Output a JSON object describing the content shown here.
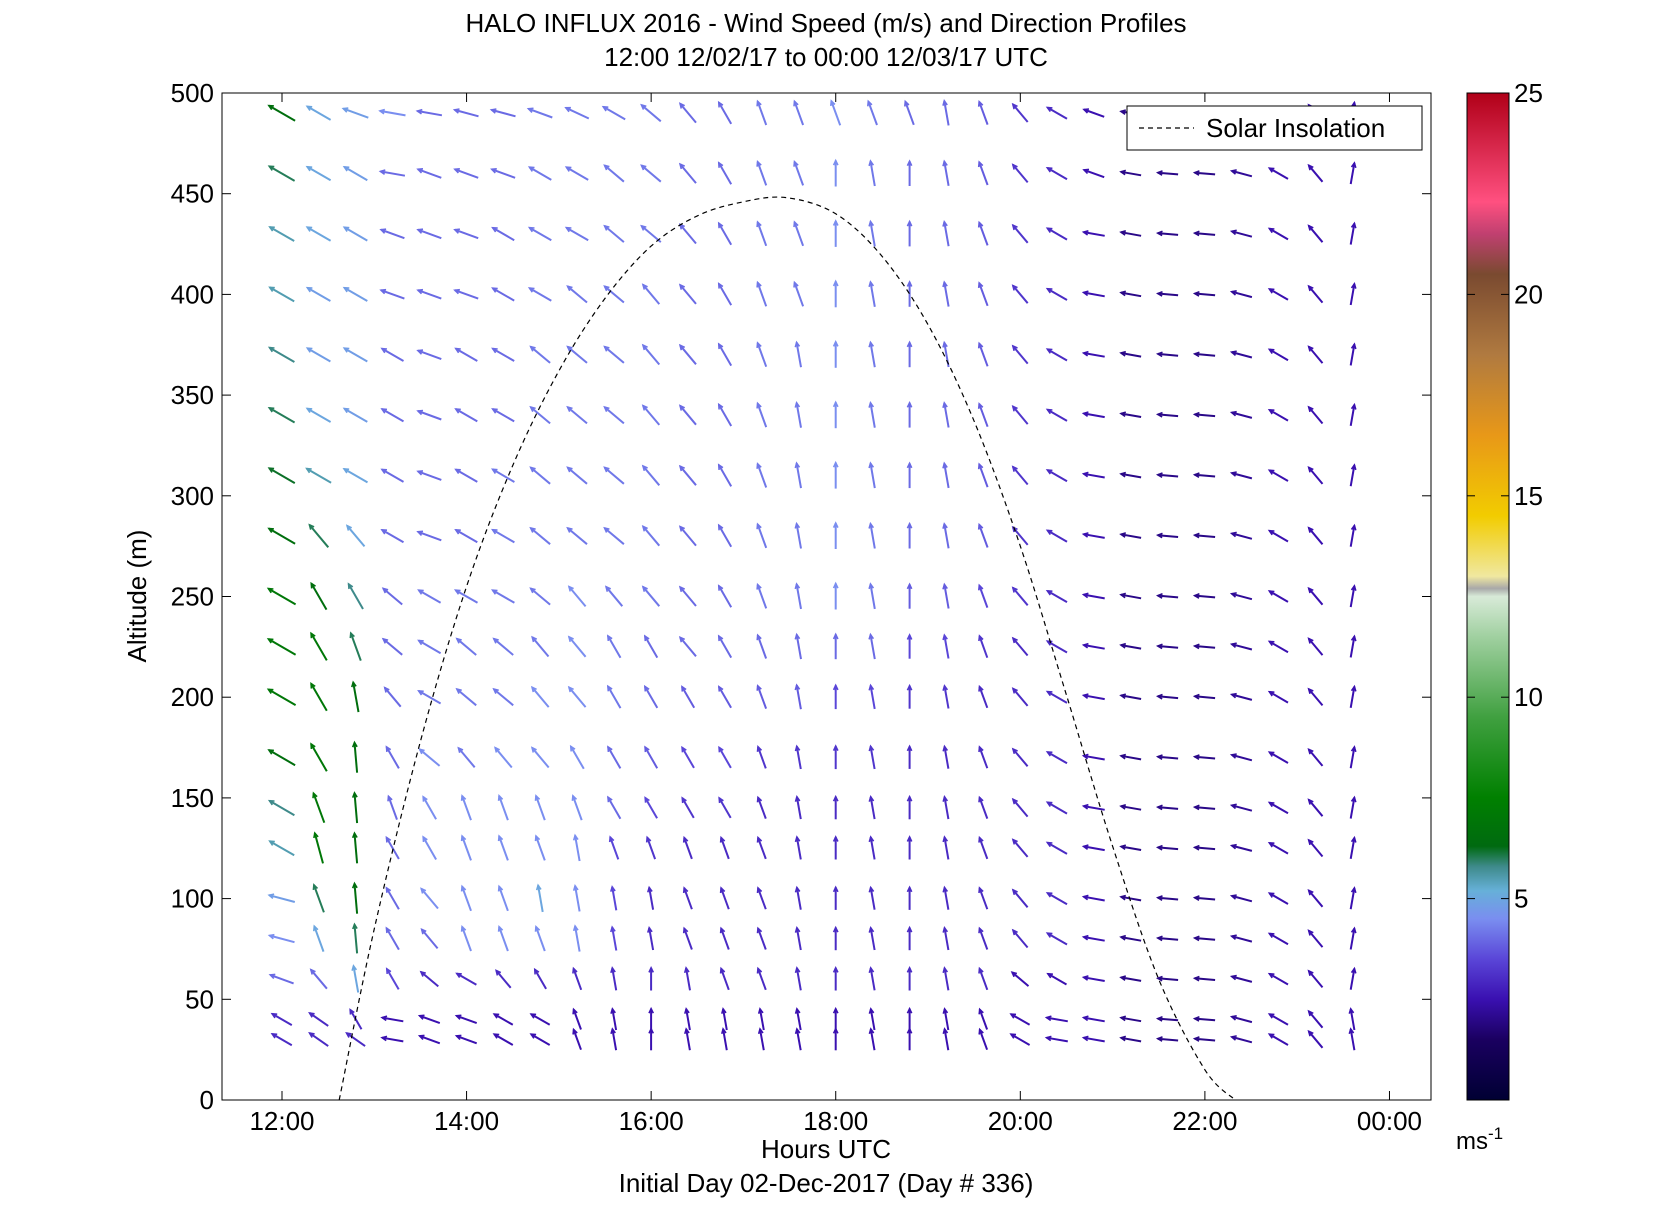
{
  "chart_data": {
    "type": "wind_profile_quiver",
    "title": "HALO INFLUX 2016 - Wind Speed (m/s) and Direction Profiles",
    "subtitle": "12:00 12/02/17 to 00:00 12/03/17  UTC",
    "xlabel": "Hours UTC",
    "footer": "Initial Day 02-Dec-2017 (Day # 336)",
    "ylabel": "Altitude (m)",
    "x_ticks": [
      "12:00",
      "14:00",
      "16:00",
      "18:00",
      "20:00",
      "22:00",
      "00:00"
    ],
    "x_tick_hours": [
      12,
      14,
      16,
      18,
      20,
      22,
      24
    ],
    "xlim_hours": [
      11.35,
      24.45
    ],
    "y_ticks": [
      0,
      50,
      100,
      150,
      200,
      250,
      300,
      350,
      400,
      450,
      500
    ],
    "ylim": [
      0,
      500
    ],
    "legend": {
      "label": "Solar Insolation",
      "position": "top-right"
    },
    "colorbar": {
      "ticks": [
        5,
        10,
        15,
        20,
        25
      ],
      "range": [
        0,
        25
      ],
      "unit_label": "ms-1",
      "stops": [
        {
          "v": 0,
          "c": "#000033"
        },
        {
          "v": 1.5,
          "c": "#1a0060"
        },
        {
          "v": 2.5,
          "c": "#3a10b0"
        },
        {
          "v": 3.5,
          "c": "#5a46d8"
        },
        {
          "v": 4.5,
          "c": "#7a8ef0"
        },
        {
          "v": 5.2,
          "c": "#66b0d8"
        },
        {
          "v": 5.8,
          "c": "#3e8a8a"
        },
        {
          "v": 6.3,
          "c": "#006a10"
        },
        {
          "v": 7.5,
          "c": "#008000"
        },
        {
          "v": 9.5,
          "c": "#40a040"
        },
        {
          "v": 11.5,
          "c": "#a0d0a0"
        },
        {
          "v": 12.5,
          "c": "#d8ead8"
        },
        {
          "v": 12.7,
          "c": "#a8a8a8"
        },
        {
          "v": 13.0,
          "c": "#f0e8a0"
        },
        {
          "v": 14.5,
          "c": "#f2cc00"
        },
        {
          "v": 16.5,
          "c": "#e89818"
        },
        {
          "v": 18.5,
          "c": "#b07a40"
        },
        {
          "v": 20.5,
          "c": "#7a4a30"
        },
        {
          "v": 21.5,
          "c": "#c04070"
        },
        {
          "v": 22.3,
          "c": "#ff5080"
        },
        {
          "v": 25,
          "c": "#b00018"
        }
      ]
    },
    "altitudes_m": [
      30,
      40,
      60,
      80,
      100,
      125,
      145,
      170,
      200,
      225,
      250,
      280,
      310,
      340,
      370,
      400,
      430,
      460,
      490
    ],
    "times_hours": [
      12.0,
      12.4,
      12.8,
      13.2,
      13.6,
      14.0,
      14.4,
      14.8,
      15.2,
      15.6,
      16.0,
      16.4,
      16.8,
      17.2,
      17.6,
      18.0,
      18.4,
      18.8,
      19.2,
      19.6,
      20.0,
      20.4,
      20.8,
      21.2,
      21.6,
      22.0,
      22.4,
      22.8,
      23.2,
      23.6
    ],
    "wind_note": "direction in degrees from north the flow points toward; speed in m/s",
    "wind_direction_deg": [
      [
        300,
        300,
        290,
        285,
        285,
        300,
        300,
        300,
        300,
        300,
        300,
        300,
        300,
        300,
        300,
        300,
        300,
        300,
        300
      ],
      [
        305,
        305,
        320,
        340,
        340,
        345,
        340,
        330,
        330,
        330,
        330,
        320,
        300,
        300,
        300,
        300,
        300,
        300,
        300
      ],
      [
        305,
        330,
        350,
        355,
        355,
        355,
        355,
        355,
        350,
        340,
        330,
        320,
        300,
        300,
        300,
        300,
        300,
        300,
        290
      ],
      [
        280,
        280,
        330,
        330,
        330,
        330,
        340,
        330,
        320,
        310,
        310,
        300,
        300,
        300,
        300,
        290,
        290,
        280,
        280
      ],
      [
        290,
        290,
        310,
        320,
        320,
        330,
        330,
        310,
        300,
        300,
        300,
        290,
        290,
        290,
        290,
        290,
        290,
        290,
        280
      ],
      [
        290,
        290,
        300,
        340,
        340,
        340,
        340,
        320,
        310,
        310,
        300,
        300,
        300,
        300,
        300,
        290,
        290,
        290,
        285
      ],
      [
        300,
        300,
        320,
        340,
        340,
        340,
        340,
        320,
        310,
        310,
        300,
        300,
        300,
        300,
        300,
        300,
        300,
        290,
        285
      ],
      [
        300,
        300,
        330,
        340,
        350,
        340,
        340,
        320,
        320,
        320,
        310,
        310,
        310,
        310,
        310,
        300,
        300,
        300,
        290
      ],
      [
        340,
        340,
        340,
        350,
        350,
        350,
        340,
        330,
        320,
        320,
        320,
        310,
        310,
        310,
        310,
        310,
        300,
        300,
        295
      ],
      [
        350,
        350,
        350,
        350,
        350,
        340,
        330,
        330,
        330,
        330,
        320,
        310,
        310,
        310,
        310,
        310,
        310,
        310,
        300
      ],
      [
        0,
        0,
        0,
        350,
        350,
        340,
        330,
        330,
        330,
        330,
        320,
        320,
        320,
        320,
        320,
        320,
        310,
        310,
        310
      ],
      [
        350,
        350,
        350,
        340,
        340,
        340,
        330,
        330,
        330,
        320,
        320,
        320,
        320,
        320,
        320,
        320,
        320,
        320,
        320
      ],
      [
        350,
        350,
        340,
        340,
        340,
        340,
        330,
        330,
        330,
        330,
        330,
        330,
        330,
        330,
        330,
        330,
        330,
        330,
        330
      ],
      [
        350,
        350,
        340,
        340,
        340,
        340,
        340,
        340,
        340,
        340,
        340,
        340,
        340,
        340,
        340,
        340,
        340,
        340,
        340
      ],
      [
        350,
        350,
        350,
        350,
        350,
        350,
        350,
        350,
        350,
        350,
        350,
        350,
        350,
        350,
        350,
        340,
        340,
        340,
        340
      ],
      [
        0,
        0,
        0,
        0,
        0,
        0,
        0,
        0,
        0,
        0,
        0,
        0,
        0,
        0,
        0,
        0,
        0,
        0,
        340
      ],
      [
        350,
        350,
        350,
        350,
        350,
        350,
        350,
        350,
        350,
        350,
        350,
        350,
        350,
        350,
        350,
        350,
        350,
        350,
        340
      ],
      [
        0,
        0,
        0,
        0,
        0,
        0,
        0,
        0,
        0,
        0,
        0,
        0,
        0,
        0,
        0,
        0,
        0,
        0,
        340
      ],
      [
        350,
        350,
        350,
        350,
        350,
        350,
        350,
        350,
        350,
        350,
        350,
        350,
        350,
        350,
        350,
        350,
        350,
        350,
        350
      ],
      [
        340,
        340,
        340,
        340,
        340,
        340,
        340,
        340,
        340,
        340,
        340,
        340,
        340,
        340,
        340,
        340,
        340,
        340,
        340
      ],
      [
        300,
        300,
        310,
        320,
        320,
        320,
        320,
        320,
        320,
        320,
        320,
        320,
        320,
        320,
        320,
        320,
        320,
        320,
        320
      ],
      [
        280,
        280,
        300,
        300,
        300,
        300,
        300,
        300,
        300,
        300,
        300,
        300,
        300,
        300,
        300,
        300,
        300,
        300,
        300
      ],
      [
        280,
        280,
        280,
        280,
        280,
        280,
        280,
        280,
        280,
        280,
        280,
        280,
        280,
        280,
        280,
        280,
        280,
        290,
        290
      ],
      [
        280,
        280,
        280,
        280,
        280,
        280,
        280,
        280,
        280,
        280,
        280,
        280,
        280,
        280,
        280,
        280,
        280,
        280,
        280
      ],
      [
        275,
        275,
        275,
        275,
        275,
        275,
        275,
        275,
        275,
        275,
        275,
        275,
        275,
        275,
        275,
        275,
        275,
        275,
        275
      ],
      [
        275,
        275,
        275,
        275,
        275,
        275,
        275,
        275,
        275,
        275,
        275,
        275,
        275,
        275,
        275,
        275,
        275,
        275,
        275
      ],
      [
        285,
        285,
        285,
        285,
        285,
        285,
        285,
        285,
        285,
        285,
        285,
        285,
        285,
        285,
        285,
        285,
        285,
        285,
        285
      ],
      [
        300,
        300,
        300,
        300,
        300,
        300,
        300,
        300,
        300,
        300,
        300,
        300,
        300,
        300,
        300,
        300,
        300,
        300,
        300
      ],
      [
        320,
        320,
        320,
        320,
        320,
        320,
        320,
        320,
        320,
        320,
        320,
        320,
        320,
        320,
        320,
        320,
        320,
        320,
        320
      ],
      [
        350,
        350,
        10,
        10,
        10,
        10,
        10,
        10,
        10,
        10,
        10,
        10,
        10,
        10,
        10,
        10,
        10,
        10,
        10
      ]
    ],
    "wind_speed_ms": [
      [
        3,
        3,
        4,
        4.5,
        4.8,
        5.5,
        5.8,
        6.5,
        7,
        7,
        7,
        6.5,
        6.2,
        6,
        5.8,
        5.5,
        5.5,
        6,
        6.5
      ],
      [
        3,
        3,
        4,
        5,
        6,
        7,
        7,
        7,
        7,
        7,
        6.5,
        6,
        5.5,
        5,
        4.8,
        4.8,
        5,
        5,
        5
      ],
      [
        3,
        3,
        5,
        6,
        6.5,
        6.5,
        6.5,
        6.5,
        6.5,
        6,
        5.8,
        5,
        5,
        4.8,
        4.8,
        4.8,
        4.8,
        4.8,
        4.8
      ],
      [
        2.5,
        2.5,
        3.5,
        4,
        4,
        4,
        4,
        4,
        4,
        4,
        4,
        4,
        4,
        4,
        4,
        4,
        4,
        4,
        4.5
      ],
      [
        2.5,
        2.5,
        3,
        4,
        4.5,
        4.5,
        4.5,
        4.5,
        4.2,
        4.2,
        4.2,
        4,
        4,
        4,
        4,
        4,
        4,
        4,
        4
      ],
      [
        2.5,
        2.5,
        3,
        4.5,
        4.5,
        4.5,
        4.5,
        4.2,
        4.2,
        4.2,
        4.2,
        4,
        4,
        4,
        4,
        4,
        4,
        4,
        4
      ],
      [
        2.5,
        2.5,
        3,
        4.5,
        4.5,
        4.5,
        4.5,
        4.5,
        4.2,
        4.2,
        4.2,
        4.2,
        4.2,
        4,
        4,
        4,
        4,
        4,
        4
      ],
      [
        2.5,
        2.5,
        3,
        4.5,
        5,
        4.5,
        4.5,
        4.5,
        4.5,
        4.2,
        4.2,
        4.2,
        4.2,
        4.2,
        4.2,
        4.2,
        4.2,
        4.2,
        4.2
      ],
      [
        2.5,
        2.5,
        3,
        4.5,
        4.5,
        4.5,
        4.5,
        4.5,
        4.5,
        4.5,
        4.5,
        4.2,
        4.2,
        4.2,
        4.2,
        4.2,
        4.2,
        4.2,
        4.2
      ],
      [
        2.5,
        2.5,
        3,
        3.5,
        3.5,
        3.5,
        4,
        4,
        4.2,
        4.2,
        4.2,
        4.2,
        4.2,
        4.2,
        4.2,
        4.2,
        4.2,
        4.2,
        4.2
      ],
      [
        2.5,
        2.5,
        3,
        3,
        3,
        3.2,
        3.5,
        3.8,
        4,
        4,
        4.2,
        4.2,
        4.2,
        4.2,
        4.2,
        4.2,
        4.2,
        4.2,
        4.2
      ],
      [
        2.5,
        2.5,
        3,
        3,
        3,
        3,
        3.2,
        3.5,
        3.8,
        4,
        4,
        4,
        4,
        4,
        4,
        4,
        4,
        4,
        4
      ],
      [
        2.5,
        2.5,
        3,
        3,
        3,
        3,
        3.2,
        3.5,
        3.8,
        4,
        4,
        4,
        4,
        4,
        4,
        4,
        4,
        4,
        4
      ],
      [
        2.5,
        2.5,
        3,
        3,
        3,
        3,
        3,
        3.2,
        3.8,
        4,
        4.2,
        4.2,
        4.2,
        4.2,
        4.2,
        4.2,
        4.2,
        4.2,
        4.2
      ],
      [
        2.5,
        2.5,
        3,
        3,
        3,
        3,
        3,
        3.2,
        3.8,
        4,
        4.2,
        4.2,
        4.2,
        4.2,
        4.2,
        4.2,
        4.2,
        4.2,
        4.2
      ],
      [
        2.5,
        2.5,
        3,
        3,
        3,
        3,
        3,
        3.2,
        3.5,
        4,
        4.5,
        4.5,
        4.5,
        4.5,
        4.5,
        4.5,
        4.5,
        4.5,
        4.5
      ],
      [
        2.5,
        2.5,
        3,
        3,
        3,
        3,
        3,
        3.2,
        3.5,
        4,
        4.2,
        4.2,
        4.2,
        4.2,
        4.2,
        4.2,
        4.2,
        4.2,
        4.2
      ],
      [
        2.5,
        2.5,
        3,
        3,
        3,
        3,
        3,
        3,
        3.2,
        3.5,
        3.8,
        4,
        4,
        4,
        4,
        4,
        4,
        4,
        4
      ],
      [
        2.5,
        2.5,
        3,
        3,
        3,
        3,
        3,
        3,
        3.2,
        3.5,
        3.8,
        4,
        4,
        4,
        4,
        4,
        4,
        4,
        4
      ],
      [
        2.5,
        2.5,
        3,
        3,
        3,
        3,
        3,
        3,
        3,
        3.2,
        3.5,
        3.8,
        3.8,
        3.8,
        3.8,
        3.8,
        3.8,
        3.8,
        3.8
      ],
      [
        2.5,
        2.5,
        2.5,
        3,
        3,
        3,
        3,
        3,
        3,
        3,
        3.2,
        3.2,
        3.2,
        3.2,
        3.2,
        3.2,
        3.2,
        3.2,
        3.2
      ],
      [
        2.5,
        2.5,
        2.5,
        3,
        3,
        3,
        3,
        3,
        3,
        3,
        3,
        3,
        3,
        3,
        3,
        3,
        3,
        3,
        3
      ],
      [
        2.5,
        2.5,
        2.5,
        2.5,
        2.5,
        2.5,
        2.5,
        2.5,
        2.5,
        2.5,
        2.5,
        2.5,
        2.5,
        2.5,
        2.5,
        2.5,
        2.5,
        2.5,
        2.5
      ],
      [
        2,
        2,
        2,
        2,
        2,
        2,
        2,
        2,
        2,
        2,
        2,
        2,
        2,
        2,
        2,
        2,
        2,
        2,
        2
      ],
      [
        2,
        2,
        2,
        2,
        2,
        2,
        2,
        2,
        2,
        2,
        2,
        2,
        2,
        2,
        2,
        2,
        2,
        2,
        2
      ],
      [
        2,
        2,
        2,
        2,
        2,
        2,
        2,
        2,
        2,
        2,
        2,
        2,
        2,
        2,
        2,
        2,
        2,
        2,
        2
      ],
      [
        2.2,
        2.2,
        2.2,
        2.2,
        2.2,
        2.2,
        2.2,
        2.2,
        2.2,
        2.2,
        2.2,
        2.2,
        2.2,
        2.2,
        2.2,
        2.2,
        2.2,
        2.2,
        2.2
      ],
      [
        2.5,
        2.5,
        2.5,
        2.5,
        2.5,
        2.5,
        2.5,
        2.5,
        2.5,
        2.5,
        2.5,
        2.5,
        2.5,
        2.5,
        2.5,
        2.5,
        2.5,
        2.5,
        2.5
      ],
      [
        2.5,
        2.5,
        2.5,
        2.5,
        2.5,
        2.5,
        2.5,
        2.5,
        2.5,
        2.5,
        2.5,
        2.5,
        2.5,
        2.5,
        2.5,
        2.5,
        2.5,
        2.5,
        2.5
      ],
      [
        2.5,
        2.5,
        2.5,
        2.5,
        2.5,
        2.5,
        2.5,
        2.5,
        2.5,
        2.5,
        2.5,
        2.5,
        2.5,
        2.5,
        2.5,
        2.5,
        2.5,
        2.5,
        2.5
      ]
    ],
    "solar_insolation_curve": {
      "x_hours": [
        12.62,
        13.0,
        13.5,
        14.0,
        14.5,
        15.0,
        15.5,
        16.0,
        16.5,
        17.0,
        17.47,
        18.0,
        18.5,
        19.0,
        19.5,
        20.0,
        20.5,
        21.0,
        21.5,
        22.0,
        22.33
      ],
      "y_m": [
        0,
        85,
        178,
        255,
        315,
        362,
        398,
        424,
        439,
        446,
        448,
        440,
        419,
        385,
        337,
        275,
        201,
        126,
        60,
        15,
        0
      ]
    }
  }
}
